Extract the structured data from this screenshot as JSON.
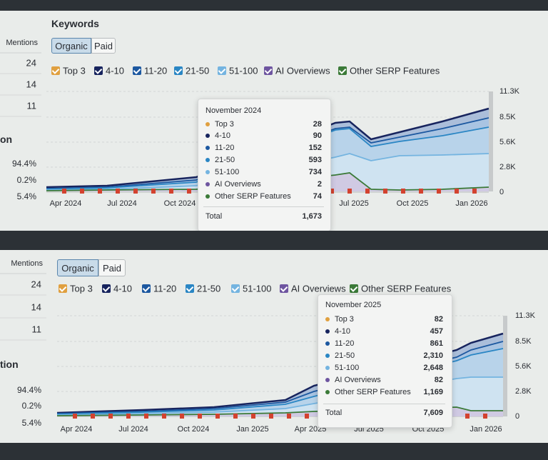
{
  "panels": [
    {
      "title": "Keywords",
      "tabs": [
        "Organic",
        "Paid"
      ],
      "legend": [
        "Top 3",
        "4-10",
        "11-20",
        "21-50",
        "51-100",
        "AI Overviews",
        "Other SERP Features"
      ],
      "left": {
        "header": "Mentions",
        "counts": [
          "24",
          "14",
          "11"
        ],
        "section": "on",
        "percents": [
          "94.4%",
          "0.2%",
          "5.4%"
        ]
      },
      "x_labels": [
        "Apr 2024",
        "Jul 2024",
        "Oct 2024",
        "Jul 2025",
        "Oct 2025",
        "Jan 2026"
      ],
      "y_labels": [
        "11.3K",
        "8.5K",
        "5.6K",
        "2.8K",
        "0"
      ],
      "tooltip": {
        "title": "November 2024",
        "rows": [
          {
            "label": "Top 3",
            "value": "28"
          },
          {
            "label": "4-10",
            "value": "90"
          },
          {
            "label": "11-20",
            "value": "152"
          },
          {
            "label": "21-50",
            "value": "593"
          },
          {
            "label": "51-100",
            "value": "734"
          },
          {
            "label": "AI Overviews",
            "value": "2"
          },
          {
            "label": "Other SERP Features",
            "value": "74"
          }
        ],
        "total_label": "Total",
        "total": "1,673"
      }
    },
    {
      "tabs": [
        "Organic",
        "Paid"
      ],
      "legend": [
        "Top 3",
        "4-10",
        "11-20",
        "21-50",
        "51-100",
        "AI Overviews",
        "Other SERP Features"
      ],
      "left": {
        "header": "Mentions",
        "counts": [
          "24",
          "14",
          "11"
        ],
        "section": "tion",
        "percents": [
          "94.4%",
          "0.2%",
          "5.4%"
        ]
      },
      "x_labels": [
        "Apr 2024",
        "Jul 2024",
        "Oct 2024",
        "Jan 2025",
        "Apr 2025",
        "Jul 2025",
        "Oct 2025",
        "Jan 2026"
      ],
      "y_labels": [
        "11.3K",
        "8.5K",
        "5.6K",
        "2.8K",
        "0"
      ],
      "tooltip": {
        "title": "November 2025",
        "rows": [
          {
            "label": "Top 3",
            "value": "82"
          },
          {
            "label": "4-10",
            "value": "457"
          },
          {
            "label": "11-20",
            "value": "861"
          },
          {
            "label": "21-50",
            "value": "2,310"
          },
          {
            "label": "51-100",
            "value": "2,648"
          },
          {
            "label": "AI Overviews",
            "value": "82"
          },
          {
            "label": "Other SERP Features",
            "value": "1,169"
          }
        ],
        "total_label": "Total",
        "total": "7,609"
      }
    }
  ]
}
